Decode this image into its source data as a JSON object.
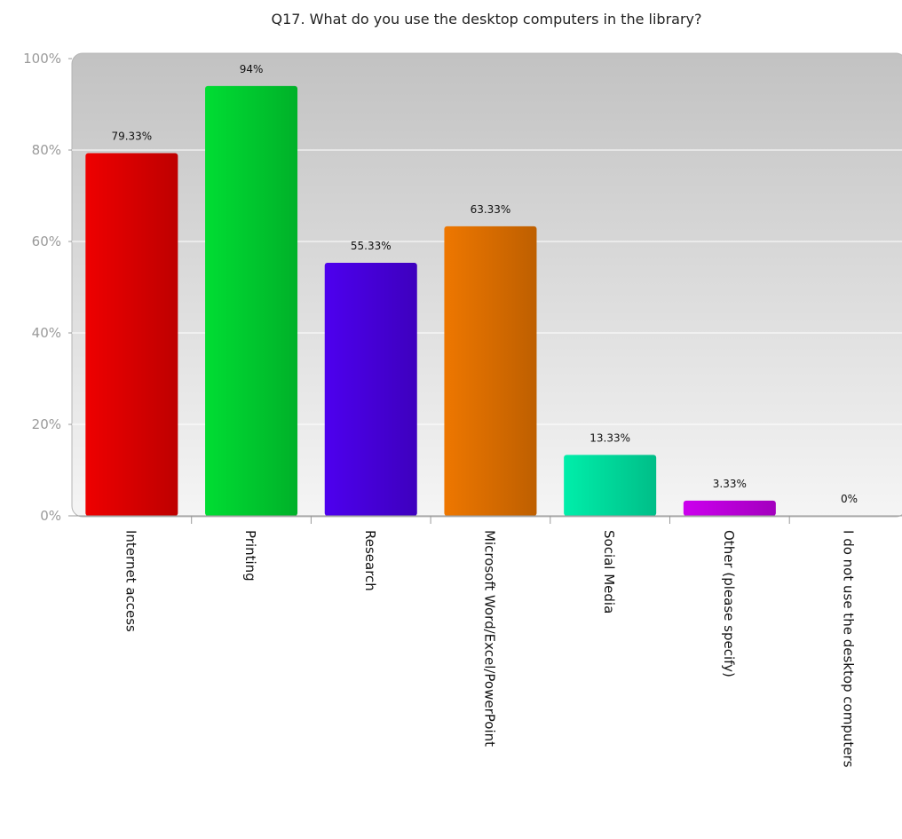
{
  "chart_data": {
    "type": "bar",
    "title": "Q17. What do you use the desktop computers in the library?",
    "xlabel": "",
    "ylabel": "",
    "ylim": [
      0,
      100
    ],
    "yticks": [
      "0%",
      "20%",
      "40%",
      "60%",
      "80%",
      "100%"
    ],
    "grid": true,
    "legend": "none",
    "categories": [
      "Internet access",
      "Printing",
      "Research",
      "Microsoft Word/Excel/PowerPoint",
      "Social Media",
      "Other (please specify)",
      "I do not use the desktop computers"
    ],
    "values": [
      79.33,
      94,
      55.33,
      63.33,
      13.33,
      3.33,
      0
    ],
    "data_labels": [
      "79.33%",
      "94%",
      "55.33%",
      "63.33%",
      "13.33%",
      "3.33%",
      "0%"
    ],
    "colors": [
      "#ee0000",
      "#00dd33",
      "#4d00ee",
      "#ee7700",
      "#00eeaa",
      "#cc00ee",
      "#999999"
    ]
  }
}
